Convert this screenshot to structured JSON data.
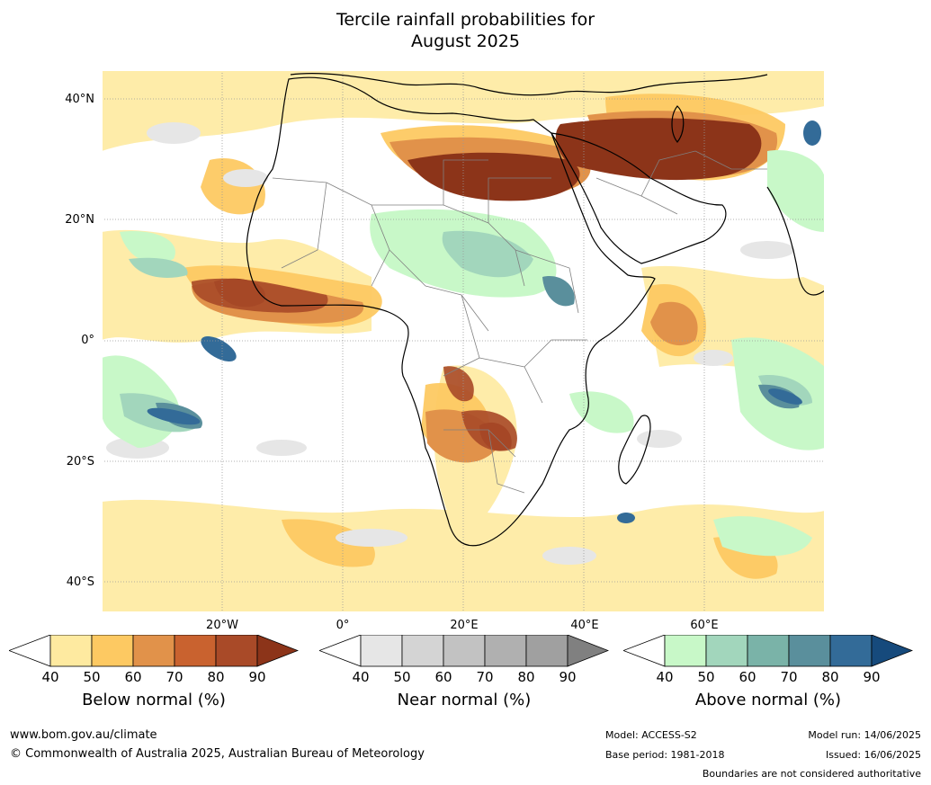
{
  "title": {
    "line1": "Tercile rainfall probabilities for",
    "line2": "August 2025"
  },
  "map": {
    "lat_labels": [
      "40°N",
      "20°N",
      "0°",
      "20°S",
      "40°S"
    ],
    "lon_labels": [
      "20°W",
      "0°",
      "20°E",
      "40°E",
      "60°E"
    ],
    "background_color": "#ffffff",
    "coastline_color": "#000000",
    "border_color": "#808080"
  },
  "legends": {
    "below": {
      "title": "Below normal (%)",
      "ticks": [
        "40",
        "50",
        "60",
        "70",
        "80",
        "90"
      ],
      "colors": [
        "#ffffff",
        "#feeaa0",
        "#fdc962",
        "#e1924a",
        "#c9622f",
        "#a94a28",
        "#8c3419"
      ]
    },
    "near": {
      "title": "Near normal (%)",
      "ticks": [
        "40",
        "50",
        "60",
        "70",
        "80",
        "90"
      ],
      "colors": [
        "#ffffff",
        "#e6e6e6",
        "#d4d4d4",
        "#c2c2c2",
        "#b0b0b0",
        "#a0a0a0",
        "#808080"
      ]
    },
    "above": {
      "title": "Above normal (%)",
      "ticks": [
        "40",
        "50",
        "60",
        "70",
        "80",
        "90"
      ],
      "colors": [
        "#ffffff",
        "#c8f8c8",
        "#a2d6bc",
        "#7ab3a8",
        "#5a8f9c",
        "#336b98",
        "#164a7c"
      ]
    }
  },
  "footer": {
    "url": "www.bom.gov.au/climate",
    "copyright": "© Commonwealth of Australia 2025, Australian Bureau of Meteorology",
    "model": "Model: ACCESS-S2",
    "base_period": "Base period: 1981-2018",
    "model_run": "Model run: 14/06/2025",
    "issued": "Issued: 16/06/2025",
    "disclaimer": "Boundaries are not considered authoritative"
  }
}
